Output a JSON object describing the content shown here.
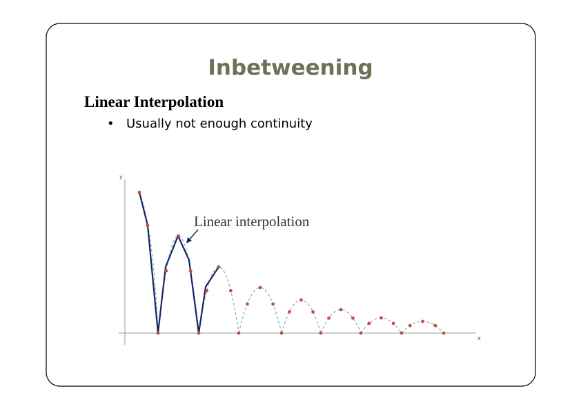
{
  "header": {
    "title": "Inbetweening"
  },
  "section": {
    "heading": "Linear Interpolation",
    "bullets": [
      "Usually not enough continuity"
    ]
  },
  "figure": {
    "y_axis_label": "y",
    "x_axis_label": "x",
    "annotation": "Linear interpolation"
  }
}
